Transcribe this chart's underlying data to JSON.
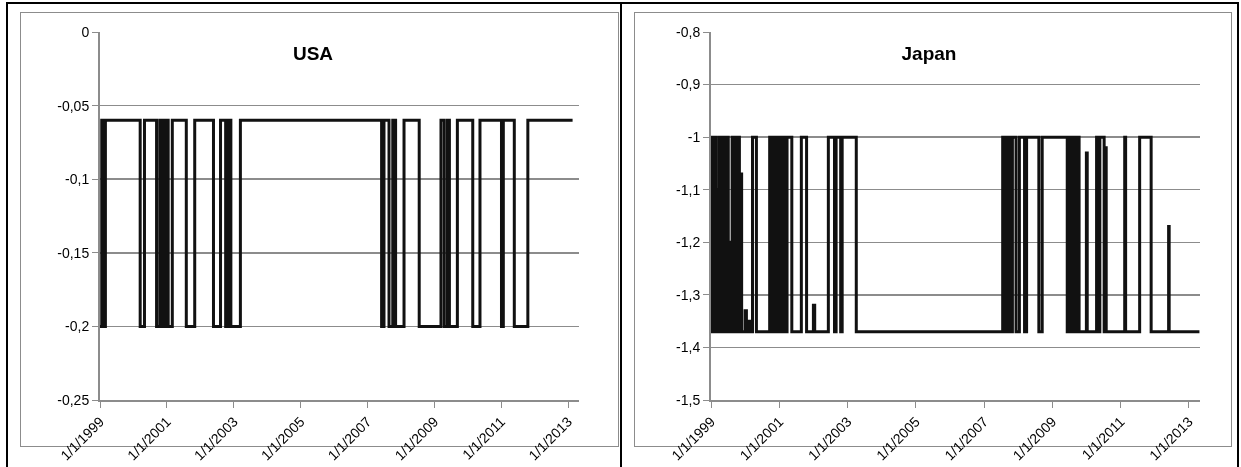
{
  "chart_data": [
    {
      "type": "step",
      "title": "USA",
      "grid": "y",
      "xlim": [
        "1999-01-01",
        "2013-05-01"
      ],
      "ylim": [
        -0.25,
        0
      ],
      "xticks": [
        {
          "value": "1999-01-01",
          "label": "1/1/1999"
        },
        {
          "value": "2001-01-01",
          "label": "1/1/2001"
        },
        {
          "value": "2003-01-01",
          "label": "1/1/2003"
        },
        {
          "value": "2005-01-01",
          "label": "1/1/2005"
        },
        {
          "value": "2007-01-01",
          "label": "1/1/2007"
        },
        {
          "value": "2009-01-01",
          "label": "1/1/2009"
        },
        {
          "value": "2011-01-01",
          "label": "1/1/2011"
        },
        {
          "value": "2013-01-01",
          "label": "1/1/2013"
        }
      ],
      "yticks": [
        0,
        {
          "value": -0.05,
          "label": "-0,05"
        },
        {
          "value": -0.1,
          "label": "-0,1"
        },
        {
          "value": -0.15,
          "label": "-0,15"
        },
        {
          "value": -0.2,
          "label": "-0,2"
        },
        {
          "value": -0.25,
          "label": "-0,25"
        }
      ],
      "series": [
        {
          "color": "#111111",
          "x": [
            "1999-01-01",
            "1999-01-20",
            "1999-02-01",
            "1999-03-01",
            "2000-03-15",
            "2000-05-01",
            "2000-09-10",
            "2000-10-15",
            "2000-11-15",
            "2000-12-15",
            "2001-01-15",
            "2001-03-01",
            "2001-08-01",
            "2001-11-01",
            "2002-05-25",
            "2002-08-10",
            "2002-10-05",
            "2002-11-01",
            "2002-12-01",
            "2003-03-15",
            "2007-06-05",
            "2007-07-01",
            "2007-08-25",
            "2007-10-05",
            "2007-11-05",
            "2008-02-05",
            "2008-07-20",
            "2009-03-15",
            "2009-04-20",
            "2009-05-25",
            "2009-06-15",
            "2009-09-10",
            "2010-02-25",
            "2010-05-15",
            "2011-01-05",
            "2011-01-25",
            "2011-05-25",
            "2011-10-20",
            "2013-02-20"
          ],
          "values": [
            -0.2,
            -0.06,
            -0.2,
            -0.06,
            -0.2,
            -0.06,
            -0.2,
            -0.06,
            -0.2,
            -0.06,
            -0.2,
            -0.06,
            -0.2,
            -0.06,
            -0.2,
            -0.06,
            -0.2,
            -0.06,
            -0.2,
            -0.06,
            -0.2,
            -0.06,
            -0.2,
            -0.06,
            -0.2,
            -0.06,
            -0.2,
            -0.06,
            -0.2,
            -0.06,
            -0.2,
            -0.06,
            -0.2,
            -0.06,
            -0.2,
            -0.06,
            -0.2,
            -0.06,
            -0.06
          ]
        }
      ]
    },
    {
      "type": "step",
      "title": "Japan",
      "grid": "y",
      "xlim": [
        "1999-01-01",
        "2013-05-01"
      ],
      "ylim": [
        -1.5,
        -0.8
      ],
      "xticks": [
        {
          "value": "1999-01-01",
          "label": "1/1/1999"
        },
        {
          "value": "2001-01-01",
          "label": "1/1/2001"
        },
        {
          "value": "2003-01-01",
          "label": "1/1/2003"
        },
        {
          "value": "2005-01-01",
          "label": "1/1/2005"
        },
        {
          "value": "2007-01-01",
          "label": "1/1/2007"
        },
        {
          "value": "2009-01-01",
          "label": "1/1/2009"
        },
        {
          "value": "2011-01-01",
          "label": "1/1/2011"
        },
        {
          "value": "2013-01-01",
          "label": "1/1/2013"
        }
      ],
      "yticks": [
        {
          "value": -0.8,
          "label": "-0,8"
        },
        {
          "value": -0.9,
          "label": "-0,9"
        },
        -1,
        {
          "value": -1.1,
          "label": "-1,1"
        },
        {
          "value": -1.2,
          "label": "-1,2"
        },
        {
          "value": -1.3,
          "label": "-1,3"
        },
        {
          "value": -1.4,
          "label": "-1,4"
        },
        {
          "value": -1.5,
          "label": "-1,5"
        }
      ],
      "series": [
        {
          "color": "#111111",
          "x": [
            "1999-01-01",
            "1999-01-10",
            "1999-01-25",
            "1999-02-05",
            "1999-02-20",
            "1999-03-05",
            "1999-03-15",
            "1999-03-25",
            "1999-04-10",
            "1999-04-25",
            "1999-05-10",
            "1999-05-20",
            "1999-06-05",
            "1999-06-20",
            "1999-07-05",
            "1999-07-20",
            "1999-08-01",
            "1999-08-15",
            "1999-09-01",
            "1999-09-15",
            "1999-10-01",
            "1999-10-15",
            "1999-11-01",
            "1999-11-15",
            "1999-11-25",
            "2000-01-01",
            "2000-01-15",
            "2000-02-10",
            "2000-02-25",
            "2000-03-20",
            "2000-05-01",
            "2000-09-20",
            "2000-10-05",
            "2000-10-20",
            "2000-11-05",
            "2000-11-20",
            "2000-12-05",
            "2000-12-20",
            "2001-01-05",
            "2001-01-20",
            "2001-02-05",
            "2001-02-20",
            "2001-03-10",
            "2001-03-25",
            "2001-05-15",
            "2001-08-25",
            "2001-10-20",
            "2002-01-01",
            "2002-01-15",
            "2002-06-10",
            "2002-08-15",
            "2002-09-01",
            "2002-10-20",
            "2002-11-05",
            "2003-04-05",
            "2007-07-20",
            "2007-08-05",
            "2007-08-20",
            "2007-09-10",
            "2007-09-25",
            "2007-10-15",
            "2007-11-01",
            "2007-12-10",
            "2008-01-15",
            "2008-03-10",
            "2008-04-01",
            "2008-08-10",
            "2008-09-15",
            "2009-06-10",
            "2009-06-25",
            "2009-07-10",
            "2009-07-25",
            "2009-08-10",
            "2009-08-25",
            "2009-09-10",
            "2009-10-01",
            "2009-10-15",
            "2010-01-01",
            "2010-01-10",
            "2010-04-20",
            "2010-05-10",
            "2010-05-25",
            "2010-07-10",
            "2010-07-20",
            "2010-08-01",
            "2011-02-15",
            "2011-02-25",
            "2011-07-25",
            "2011-11-25",
            "2012-05-30",
            "2012-06-05",
            "2013-04-25"
          ],
          "values": [
            -1.37,
            -1,
            -1.37,
            -1,
            -1.37,
            -1.1,
            -1.37,
            -1,
            -1.37,
            -1,
            -1.37,
            -1,
            -1.37,
            -1,
            -1.37,
            -1.2,
            -1.37,
            -1,
            -1.37,
            -1,
            -1.37,
            -1,
            -1.37,
            -1.07,
            -1.37,
            -1.33,
            -1.37,
            -1.35,
            -1.37,
            -1,
            -1.37,
            -1,
            -1.37,
            -1,
            -1.37,
            -1,
            -1.37,
            -1,
            -1.37,
            -1,
            -1.37,
            -1,
            -1.37,
            -1,
            -1.37,
            -1,
            -1.37,
            -1.32,
            -1.37,
            -1,
            -1.37,
            -1,
            -1.37,
            -1,
            -1.37,
            -1,
            -1.37,
            -1,
            -1.37,
            -1,
            -1.37,
            -1,
            -1.37,
            -1,
            -1.37,
            -1,
            -1.37,
            -1,
            -1.37,
            -1,
            -1.37,
            -1,
            -1.37,
            -1,
            -1.37,
            -1,
            -1.37,
            -1.03,
            -1.37,
            -1,
            -1.37,
            -1,
            -1.37,
            -1.02,
            -1.37,
            -1,
            -1.37,
            -1,
            -1.37,
            -1.17,
            -1.37,
            -1.37
          ]
        }
      ]
    }
  ]
}
